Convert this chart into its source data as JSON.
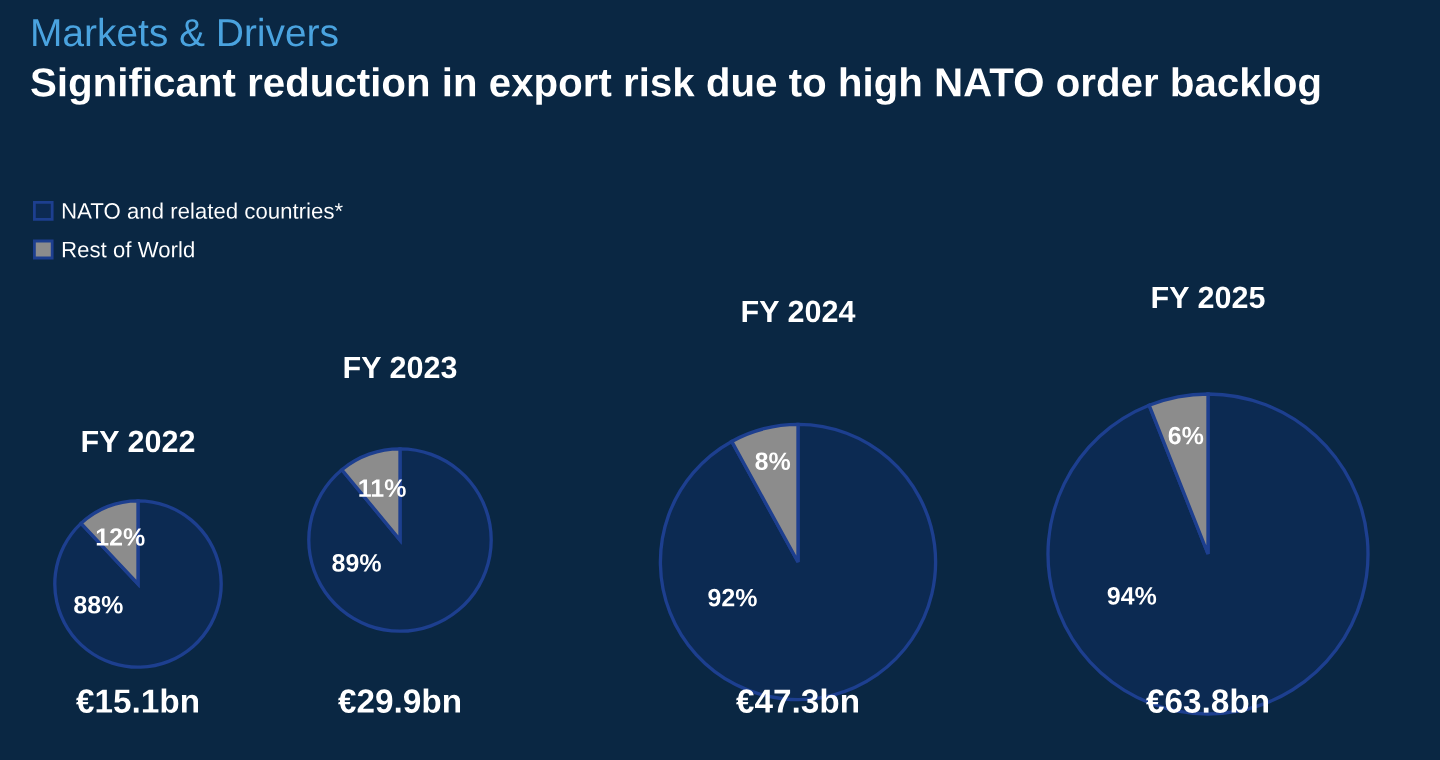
{
  "chart_data": [
    {
      "type": "other",
      "title": "Markets & Drivers",
      "subtitle": "Significant reduction in export risk due to high NATO order backlog"
    },
    {
      "type": "pie",
      "title": "FY 2022",
      "categories": [
        "NATO and related countries*",
        "Rest of World"
      ],
      "values": [
        88,
        12
      ],
      "colors": [
        "#0c2a52",
        "#8c8c8c"
      ],
      "value_labels": [
        "88%",
        "12%"
      ],
      "annotations": [
        "€15.1bn"
      ],
      "legend": "top"
    },
    {
      "type": "pie",
      "title": "FY 2023",
      "categories": [
        null,
        null
      ],
      "values": [
        89,
        11
      ],
      "colors": [
        "#0c2a52",
        "#8c8c8c"
      ],
      "value_labels": [
        "89%",
        "11%"
      ],
      "annotations": [
        "€29.9bn"
      ]
    },
    {
      "type": "pie",
      "title": "FY 2024",
      "categories": [
        null,
        null
      ],
      "values": [
        92,
        8
      ],
      "colors": [
        "#0c2a52",
        "#8c8c8c"
      ],
      "value_labels": [
        "92%",
        "8%"
      ],
      "annotations": [
        "€47.3bn"
      ]
    },
    {
      "type": "pie",
      "title": "FY 2025",
      "categories": [
        null,
        null
      ],
      "values": [
        94,
        6
      ],
      "colors": [
        "#0c2a52",
        "#8c8c8c"
      ],
      "value_labels": [
        "94%",
        "6%"
      ],
      "annotations": [
        "€63.8bn"
      ]
    }
  ]
}
